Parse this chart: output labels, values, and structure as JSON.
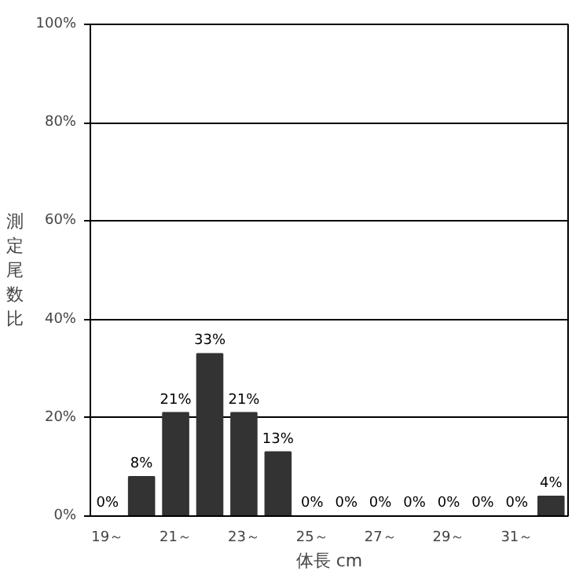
{
  "chart_data": {
    "type": "bar",
    "xlabel": "体長 cm",
    "ylabel": "測定尾数比",
    "categories": [
      "19～",
      null,
      "21～",
      null,
      "23～",
      null,
      "25～",
      null,
      "27～",
      null,
      "29～",
      null,
      "31～",
      null
    ],
    "values": [
      0,
      8,
      21,
      33,
      21,
      13,
      0,
      0,
      0,
      0,
      0,
      0,
      0,
      4
    ],
    "value_labels": [
      "0%",
      "8%",
      "21%",
      "33%",
      "21%",
      "13%",
      "0%",
      "0%",
      "0%",
      "0%",
      "0%",
      "0%",
      "0%",
      "4%"
    ],
    "color": "#333333",
    "ylim": [
      0,
      100
    ],
    "yticks": [
      {
        "value": 0,
        "label": "0%"
      },
      {
        "value": 20,
        "label": "20%"
      },
      {
        "value": 40,
        "label": "40%"
      },
      {
        "value": 60,
        "label": "60%"
      },
      {
        "value": 80,
        "label": "80%"
      },
      {
        "value": 100,
        "label": "100%"
      }
    ],
    "grid": "y"
  }
}
